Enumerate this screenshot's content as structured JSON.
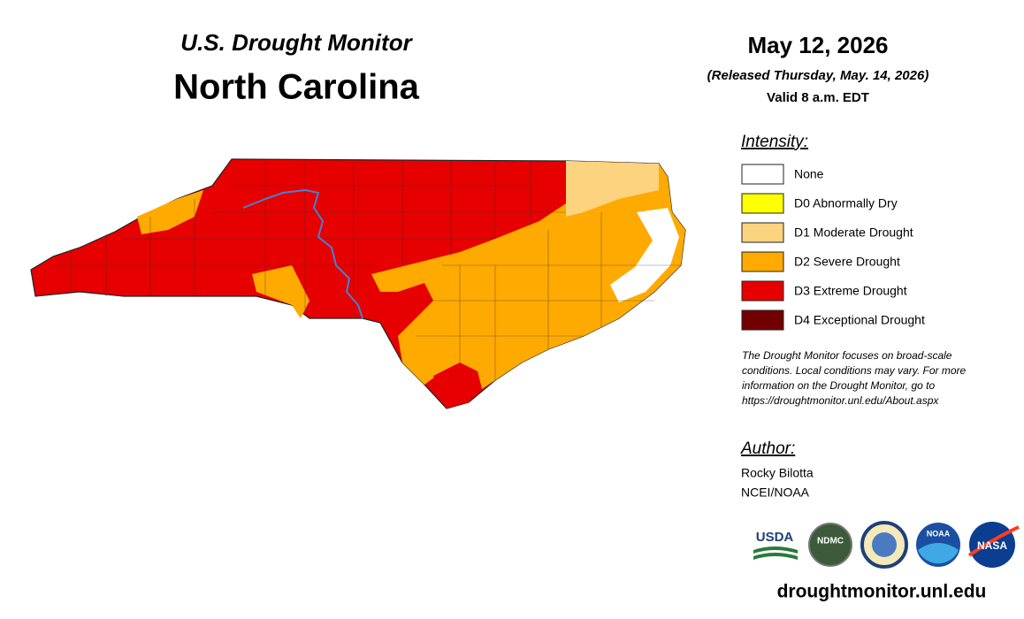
{
  "header": {
    "subtitle": "U.S. Drought Monitor",
    "title": "North Carolina"
  },
  "dates": {
    "date": "May 12, 2026",
    "released": "(Released Thursday, May. 14, 2026)",
    "valid": "Valid 8 a.m. EDT"
  },
  "legend": {
    "title": "Intensity:",
    "items": [
      {
        "label": "None",
        "color": "#ffffff"
      },
      {
        "label": "D0 Abnormally Dry",
        "color": "#ffff00"
      },
      {
        "label": "D1 Moderate Drought",
        "color": "#fcd37f"
      },
      {
        "label": "D2 Severe Drought",
        "color": "#ffaa00"
      },
      {
        "label": "D3 Extreme Drought",
        "color": "#e60000"
      },
      {
        "label": "D4 Exceptional Drought",
        "color": "#730000"
      }
    ]
  },
  "note": [
    "The Drought Monitor focuses on broad-scale",
    "conditions. Local conditions may vary. For more",
    "information on the Drought Monitor, go to",
    "https://droughtmonitor.unl.edu/About.aspx"
  ],
  "author": {
    "title": "Author:",
    "lines": [
      "Rocky Bilotta",
      "NCEI/NOAA"
    ]
  },
  "logos": [
    "USDA",
    "NDMC",
    "NOAA",
    "NASA"
  ],
  "footer": "droughtmonitor.unl.edu"
}
